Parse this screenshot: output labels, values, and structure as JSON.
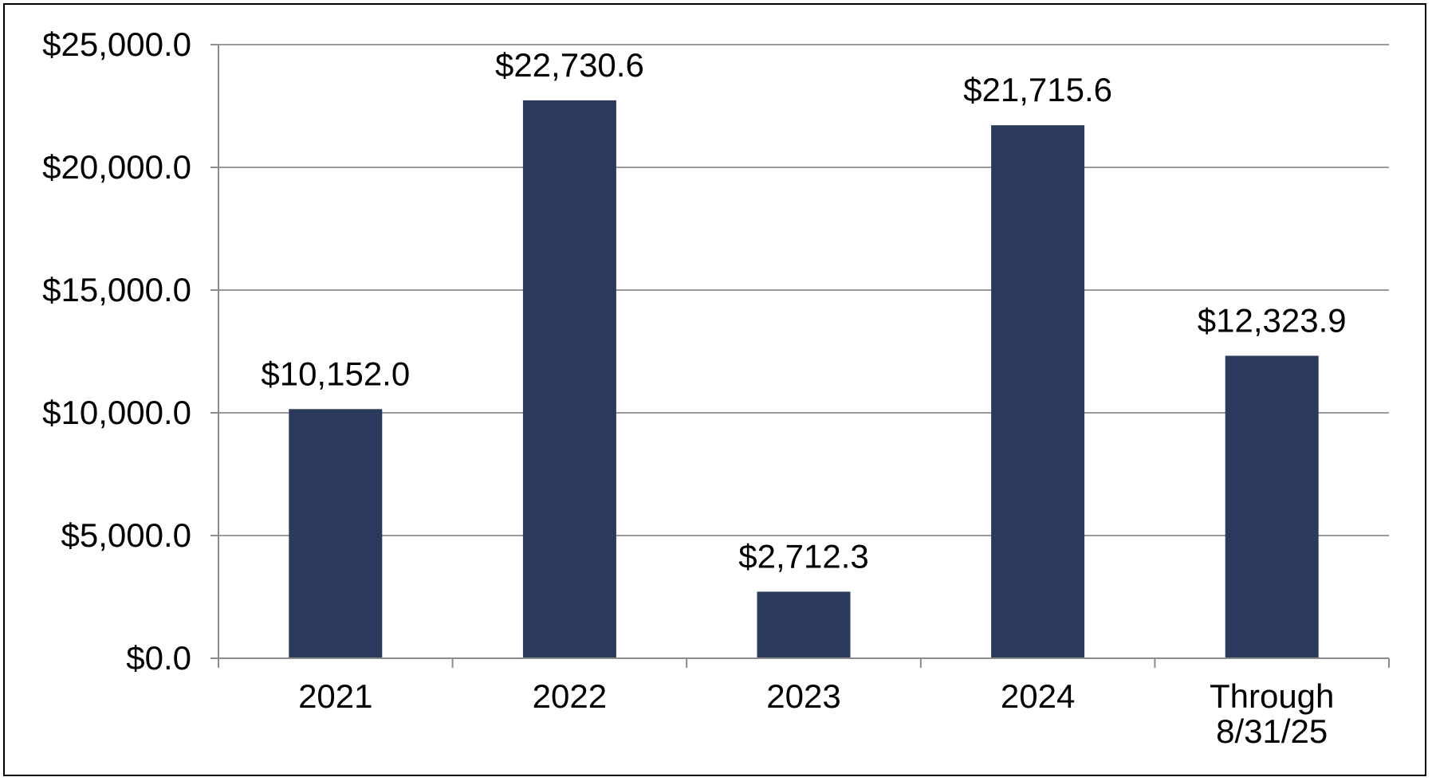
{
  "chart_data": {
    "type": "bar",
    "title": "",
    "xlabel": "",
    "ylabel": "",
    "categories": [
      [
        "2021"
      ],
      [
        "2022"
      ],
      [
        "2023"
      ],
      [
        "2024"
      ],
      [
        "Through",
        "8/31/25"
      ]
    ],
    "values": [
      10152.0,
      22730.6,
      2712.3,
      21715.6,
      12323.9
    ],
    "data_labels": [
      "$10,152.0",
      "$22,730.6",
      "$2,712.3",
      "$21,715.6",
      "$12,323.9"
    ],
    "ylim": [
      0,
      25000
    ],
    "yticks": [
      0,
      5000,
      10000,
      15000,
      20000,
      25000
    ],
    "ytick_labels": [
      "$0.0",
      "$5,000.0",
      "$10,000.0",
      "$15,000.0",
      "$20,000.0",
      "$25,000.0"
    ],
    "grid": true,
    "legend": "none",
    "colors": {
      "bar": "#2b3a5c",
      "grid": "#9a9a9a",
      "axis": "#8c8c8c"
    }
  }
}
